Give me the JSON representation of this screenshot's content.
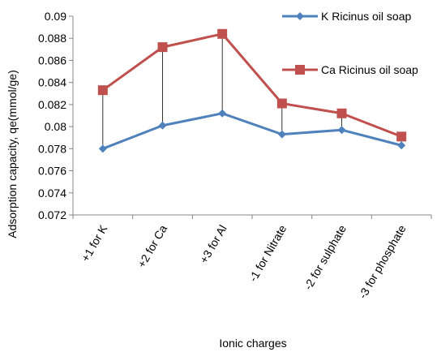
{
  "chart_data": {
    "type": "line",
    "categories": [
      "+1 for K",
      "+2 for Ca",
      "+3 for Al",
      "-1 for Nitrate",
      "-2 for sulphate",
      "-3 for phosphate"
    ],
    "series": [
      {
        "name": "K Ricinus oil soap",
        "values": [
          0.078,
          0.0801,
          0.0812,
          0.0793,
          0.0797,
          0.0783
        ],
        "color": "#4f81bd",
        "marker": "diamond"
      },
      {
        "name": "Ca Ricinus oil soap",
        "values": [
          0.0833,
          0.0872,
          0.0884,
          0.0821,
          0.0812,
          0.0791
        ],
        "color": "#c0504d",
        "marker": "square"
      }
    ],
    "ylabel": "Adsorption capacity, qe(mmol/ge)",
    "xlabel": "Ionic charges",
    "ylim": [
      0.072,
      0.09
    ],
    "yticks": [
      "0.072",
      "0.074",
      "0.076",
      "0.078",
      "0.08",
      "0.082",
      "0.084",
      "0.086",
      "0.088",
      "0.09"
    ],
    "high_low_lines": true,
    "legend_position": "right",
    "grid": false
  }
}
